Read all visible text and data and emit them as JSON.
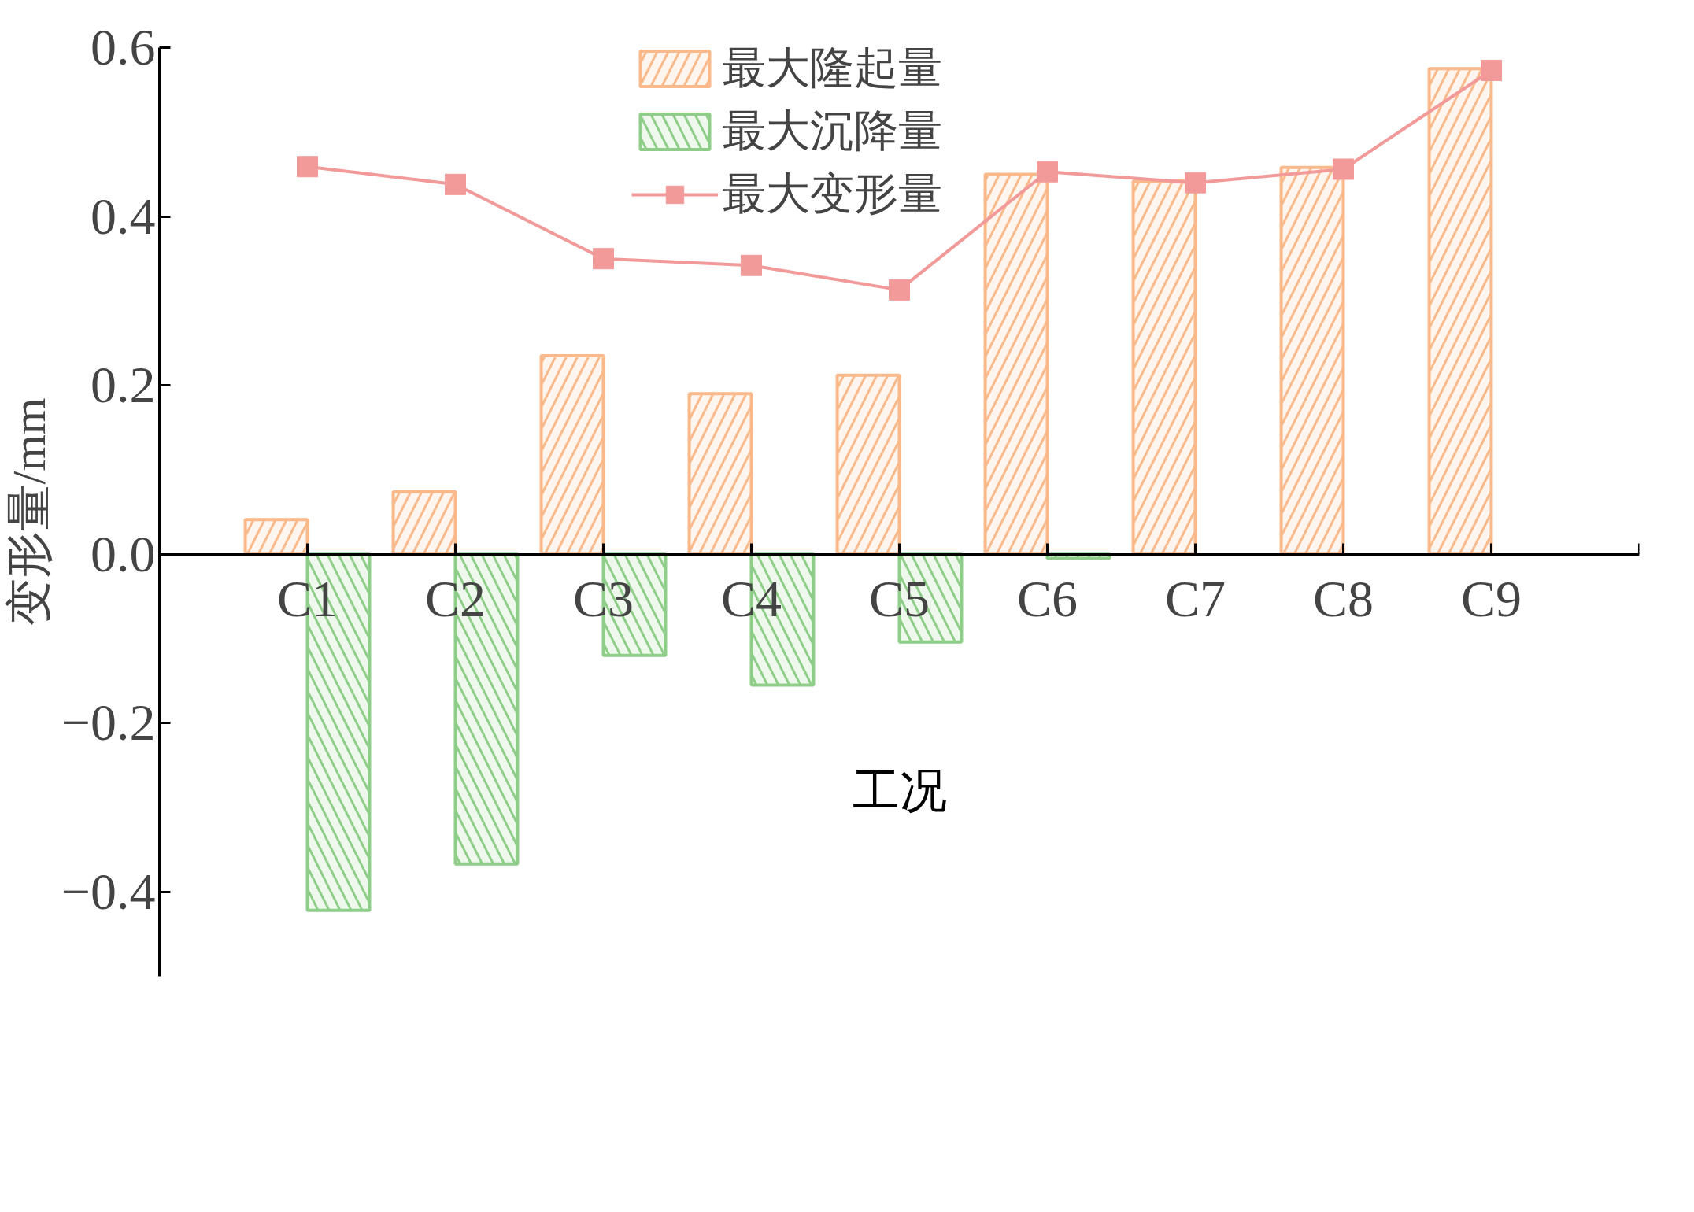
{
  "chart_data": {
    "type": "bar",
    "xlabel": "工况",
    "ylabel": "变形量/mm",
    "categories": [
      "C1",
      "C2",
      "C3",
      "C4",
      "C5",
      "C6",
      "C7",
      "C8",
      "C9"
    ],
    "series": [
      {
        "name": "最大隆起量",
        "color": "#f9b98a",
        "values": [
          0.041,
          0.074,
          0.235,
          0.19,
          0.212,
          0.45,
          0.442,
          0.458,
          0.575
        ]
      },
      {
        "name": "最大沉降量",
        "color": "#8fce88",
        "values": [
          -0.422,
          -0.367,
          -0.12,
          -0.155,
          -0.104,
          -0.005,
          null,
          null,
          null
        ]
      },
      {
        "name": "最大变形量",
        "type": "line",
        "color": "#f29a9a",
        "marker": "square",
        "values": [
          0.459,
          0.438,
          0.35,
          0.342,
          0.313,
          0.453,
          0.44,
          0.456,
          0.573
        ]
      }
    ],
    "ylim": [
      -0.5,
      0.6
    ],
    "yticks": [
      {
        "value": -0.4,
        "label": "−0.4"
      },
      {
        "value": -0.2,
        "label": "−0.2"
      },
      {
        "value": 0,
        "label": "0.0"
      },
      {
        "value": 0.2,
        "label": "0.2"
      },
      {
        "value": 0.4,
        "label": "0.4"
      },
      {
        "value": 0.6,
        "label": "0.6"
      }
    ],
    "grid": false,
    "legend": "top"
  }
}
